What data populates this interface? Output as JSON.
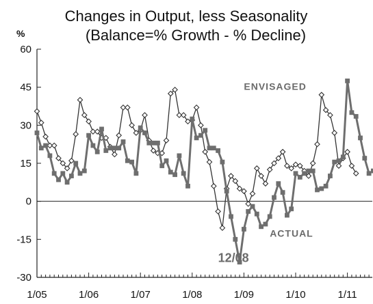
{
  "chart_data": {
    "type": "line",
    "title": "Changes in Output, less Seasonality",
    "subtitle": "(Balance=% Growth - % Decline)",
    "ylabel": "%",
    "ylim": [
      -30,
      60
    ],
    "yticks": [
      -30,
      -15,
      0,
      15,
      30,
      45,
      60
    ],
    "xlim": [
      0,
      81
    ],
    "xticks": [
      {
        "label": "1/05",
        "x": 0
      },
      {
        "label": "1/06",
        "x": 12
      },
      {
        "label": "1/07",
        "x": 24
      },
      {
        "label": "1/08",
        "x": 36
      },
      {
        "label": "1/09",
        "x": 48
      },
      {
        "label": "1/10",
        "x": 60
      },
      {
        "label": "1/11",
        "x": 72
      }
    ],
    "grid": false,
    "annotations": [
      {
        "text": "ENVISAGED",
        "x": 48,
        "y": 44,
        "style": "normal"
      },
      {
        "text": "ACTUAL",
        "x": 54,
        "y": -14,
        "style": "normal"
      },
      {
        "text": "12/08",
        "x": 42,
        "y": -24,
        "style": "big"
      }
    ],
    "series": [
      {
        "name": "ENVISAGED",
        "color": "#333333",
        "marker": "diamond",
        "values": [
          35.5,
          31,
          25.5,
          22,
          22,
          17,
          15,
          13,
          16,
          26.5,
          40,
          34,
          31.5,
          27.5,
          27.5,
          25,
          25,
          21.5,
          18.5,
          26,
          37,
          37,
          30,
          27,
          28,
          34,
          24,
          20,
          19,
          19,
          24,
          42.5,
          44,
          34,
          34,
          31.5,
          32,
          37,
          30,
          19.5,
          15.5,
          6,
          -4,
          -10.5,
          5,
          10,
          8,
          5,
          4,
          -1,
          3,
          13,
          10,
          7,
          12.5,
          15,
          17,
          19.5,
          14,
          13,
          14.5,
          14,
          12,
          10,
          15,
          22.5,
          42,
          36,
          34,
          27,
          14,
          17,
          19.5,
          14,
          11
        ]
      },
      {
        "name": "ACTUAL",
        "color": "#6e6e6e",
        "marker": "square",
        "values": [
          27,
          21,
          22,
          18,
          11,
          8.5,
          11,
          7.5,
          10,
          15,
          11,
          12,
          26,
          22,
          19.5,
          28.5,
          20,
          21,
          21,
          21,
          23.5,
          16,
          15.5,
          11,
          29,
          27,
          23,
          23,
          23,
          14,
          16,
          11.5,
          10.5,
          18,
          11,
          6,
          32.5,
          25,
          26,
          28,
          21,
          21,
          20,
          15.5,
          4,
          -6,
          -15,
          -24,
          -11,
          -4,
          -2,
          -5,
          -10,
          -9,
          -6,
          1.5,
          7,
          3.5,
          -5.5,
          -3,
          11,
          9.5,
          11,
          12,
          12,
          4.5,
          5,
          6,
          10,
          15.5,
          16,
          17.5,
          47.5,
          35,
          33.5,
          25,
          17,
          11,
          12,
          10,
          8.5
        ]
      }
    ]
  }
}
